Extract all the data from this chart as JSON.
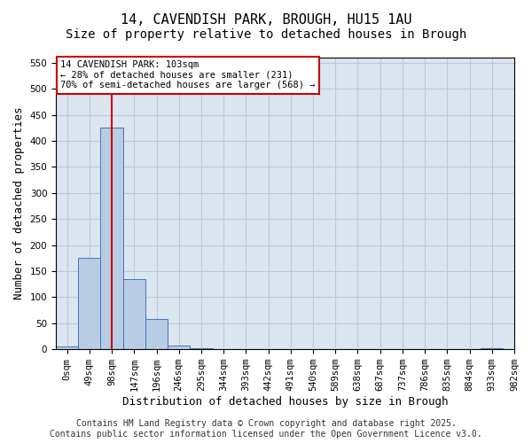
{
  "title_line1": "14, CAVENDISH PARK, BROUGH, HU15 1AU",
  "title_line2": "Size of property relative to detached houses in Brough",
  "xlabel": "Distribution of detached houses by size in Brough",
  "ylabel": "Number of detached properties",
  "bins": [
    "0sqm",
    "49sqm",
    "98sqm",
    "147sqm",
    "196sqm",
    "246sqm",
    "295sqm",
    "344sqm",
    "393sqm",
    "442sqm",
    "491sqm",
    "540sqm",
    "589sqm",
    "638sqm",
    "687sqm",
    "737sqm",
    "786sqm",
    "835sqm",
    "884sqm",
    "933sqm"
  ],
  "values": [
    5,
    175,
    425,
    135,
    58,
    8,
    2,
    1,
    1,
    1,
    0,
    1,
    0,
    0,
    0,
    0,
    0,
    0,
    0,
    2
  ],
  "extra_tick": "982sqm",
  "bar_color": "#b8cce4",
  "bar_edge_color": "#4472c4",
  "vline_x": 2.0,
  "vline_color": "#cc0000",
  "annotation_text_line1": "14 CAVENDISH PARK: 103sqm",
  "annotation_text_line2": "← 28% of detached houses are smaller (231)",
  "annotation_text_line3": "70% of semi-detached houses are larger (568) →",
  "annotation_box_color": "#cc0000",
  "annotation_fill_color": "#ffffff",
  "ylim": [
    0,
    560
  ],
  "yticks": [
    0,
    50,
    100,
    150,
    200,
    250,
    300,
    350,
    400,
    450,
    500,
    550
  ],
  "grid_color": "#c0c8d8",
  "bg_color": "#dce6f1",
  "footer_line1": "Contains HM Land Registry data © Crown copyright and database right 2025.",
  "footer_line2": "Contains public sector information licensed under the Open Government Licence v3.0.",
  "title_fontsize": 11,
  "subtitle_fontsize": 10,
  "axis_label_fontsize": 9,
  "tick_fontsize": 7.5,
  "annotation_fontsize": 7.5,
  "footer_fontsize": 7
}
